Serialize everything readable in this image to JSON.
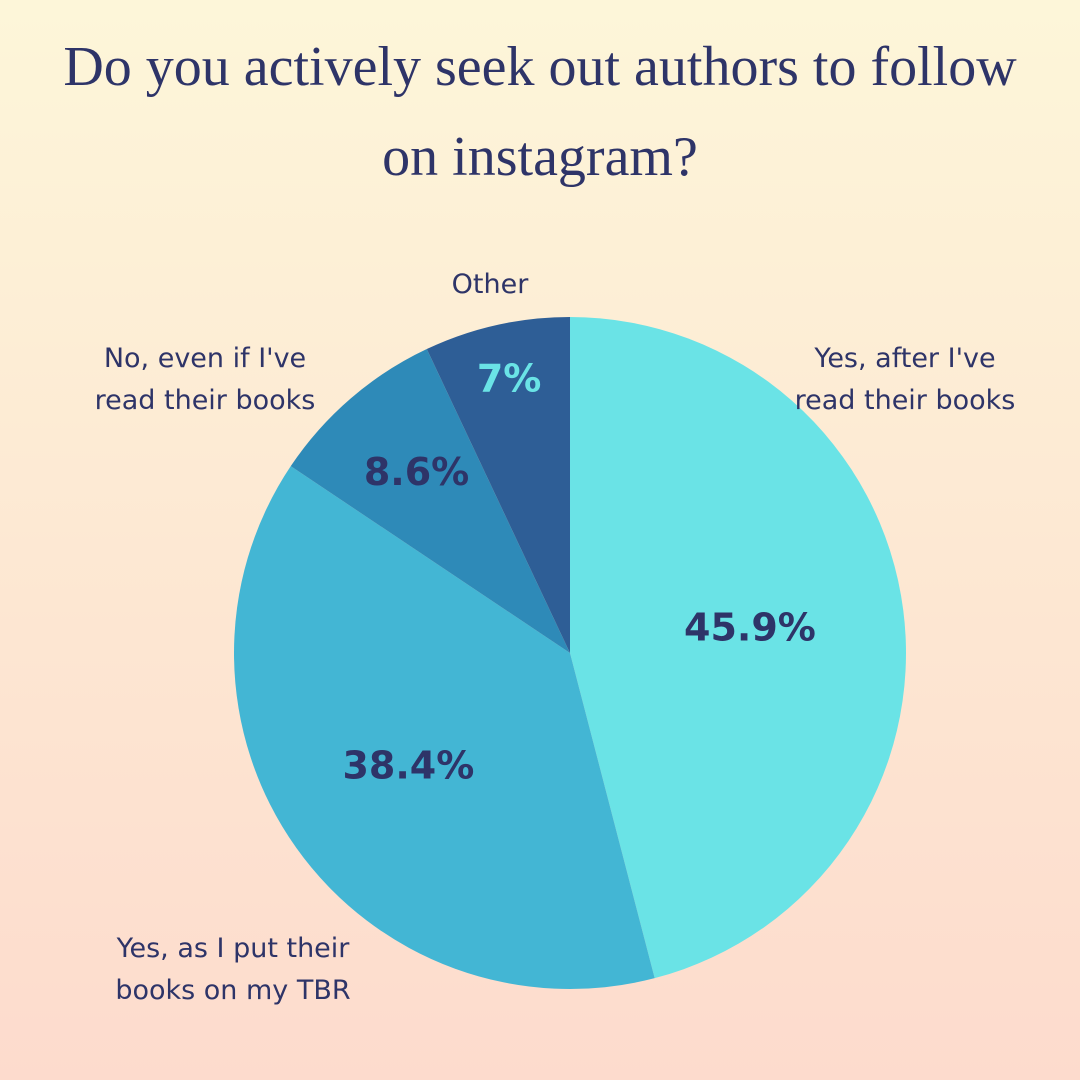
{
  "chart_data": {
    "type": "pie",
    "title": "Do you actively seek out authors to follow on instagram?",
    "categories": [
      "Yes, after I've read their books",
      "Yes, as I put their books on my TBR",
      "No, even if I've read their books",
      "Other"
    ],
    "values": [
      45.9,
      38.4,
      8.6,
      7
    ],
    "value_labels": [
      "45.9%",
      "38.4%",
      "8.6%",
      "7%"
    ],
    "colors": [
      "#6ae3e6",
      "#43b6d4",
      "#2e8ab8",
      "#2e5e96"
    ],
    "value_label_colors": [
      "#2e3468",
      "#2e3468",
      "#2e3468",
      "#6ae3e6"
    ]
  }
}
